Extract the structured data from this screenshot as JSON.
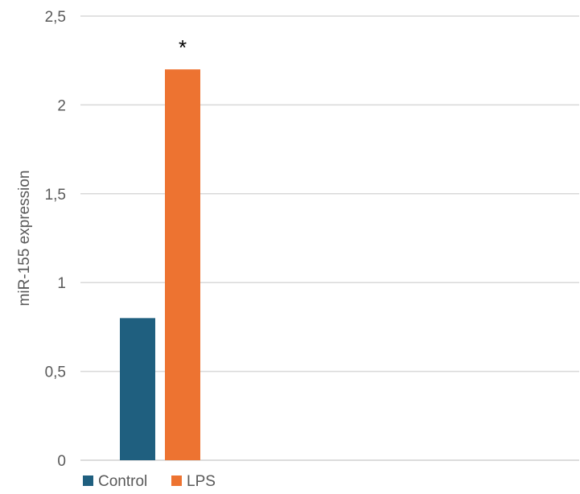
{
  "chart_data": {
    "type": "bar",
    "title": "",
    "xlabel": "",
    "ylabel": "miR-155 expression",
    "ylim": [
      0,
      2.5
    ],
    "yticks": [
      "0",
      "0,5",
      "1",
      "1,5",
      "2",
      "2,5"
    ],
    "grid": true,
    "legend_position": "bottom-left",
    "categories": [
      ""
    ],
    "series": [
      {
        "name": "Control",
        "values": [
          0.8
        ],
        "color": "#1f5f7f"
      },
      {
        "name": "LPS",
        "values": [
          2.2
        ],
        "color": "#ed7331",
        "annotation": "*"
      }
    ]
  }
}
